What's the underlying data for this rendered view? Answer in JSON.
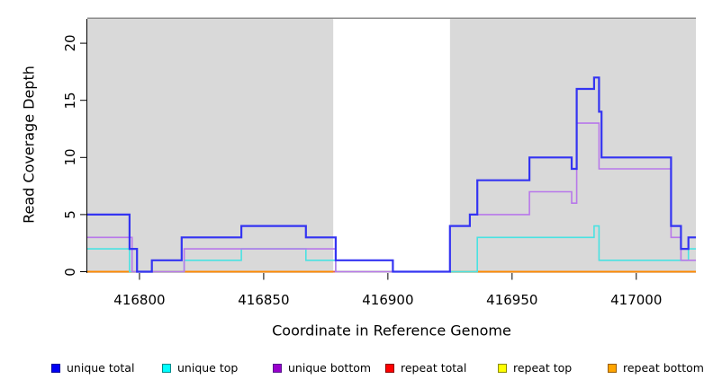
{
  "chart_data": {
    "type": "line",
    "subtype": "step",
    "title": "",
    "xlabel": "Coordinate in Reference Genome",
    "ylabel": "Read Coverage Depth",
    "xlim": [
      416779,
      417024
    ],
    "ylim": [
      0,
      22
    ],
    "grid": false,
    "legend_position": "bottom",
    "plot_background": "#ffffff",
    "shaded_band_color": "#d9d9d9",
    "panel_top_border_color": "#8c8c8c",
    "shaded_bands": [
      {
        "x0": 416779,
        "x1": 416878
      },
      {
        "x0": 416925,
        "x1": 417024
      }
    ],
    "x_ticks": [
      {
        "value": 416800,
        "label": "416800"
      },
      {
        "value": 416850,
        "label": "416850"
      },
      {
        "value": 416900,
        "label": "416900"
      },
      {
        "value": 416950,
        "label": "416950"
      },
      {
        "value": 417000,
        "label": "417000"
      }
    ],
    "y_ticks": [
      {
        "value": 0,
        "label": "0"
      },
      {
        "value": 5,
        "label": "5"
      },
      {
        "value": 10,
        "label": "10"
      },
      {
        "value": 15,
        "label": "15"
      },
      {
        "value": 20,
        "label": "20"
      }
    ],
    "series": [
      {
        "name": "unique total",
        "line_color": "#3434f2",
        "line_width": 2.2,
        "legend_fill": "#0000f5",
        "legend_border": "#00009a",
        "segments": [
          [
            416779,
            416796,
            5
          ],
          [
            416796,
            416799,
            2
          ],
          [
            416799,
            416805,
            0
          ],
          [
            416805,
            416817,
            1
          ],
          [
            416817,
            416841,
            3
          ],
          [
            416841,
            416867,
            4
          ],
          [
            416867,
            416879,
            3
          ],
          [
            416879,
            416902,
            1
          ],
          [
            416902,
            416925,
            0
          ],
          [
            416925,
            416933,
            4
          ],
          [
            416933,
            416936,
            5
          ],
          [
            416936,
            416957,
            8
          ],
          [
            416957,
            416974,
            10
          ],
          [
            416974,
            416976,
            9
          ],
          [
            416976,
            416983,
            16
          ],
          [
            416983,
            416985,
            17
          ],
          [
            416985,
            416986,
            14
          ],
          [
            416986,
            417014,
            10
          ],
          [
            417014,
            417018,
            4
          ],
          [
            417018,
            417021,
            2
          ],
          [
            417021,
            417024,
            3
          ]
        ]
      },
      {
        "name": "unique top",
        "line_color": "#4ae2e2",
        "line_width": 1.6,
        "legend_fill": "#00ffff",
        "legend_border": "#008b8b",
        "segments": [
          [
            416779,
            416796,
            2
          ],
          [
            416796,
            416818,
            0
          ],
          [
            416818,
            416841,
            1
          ],
          [
            416841,
            416867,
            2
          ],
          [
            416867,
            416879,
            1
          ],
          [
            416879,
            416936,
            0
          ],
          [
            416936,
            416983,
            3
          ],
          [
            416983,
            416985,
            4
          ],
          [
            416985,
            417021,
            1
          ],
          [
            417021,
            417024,
            2
          ]
        ]
      },
      {
        "name": "unique bottom",
        "line_color": "#b878ea",
        "line_width": 1.6,
        "legend_fill": "#9900cc",
        "legend_border": "#551a8b",
        "segments": [
          [
            416779,
            416797,
            3
          ],
          [
            416797,
            416818,
            0
          ],
          [
            416818,
            416879,
            2
          ],
          [
            416879,
            416925,
            0
          ],
          [
            416925,
            416933,
            4
          ],
          [
            416933,
            416957,
            5
          ],
          [
            416957,
            416974,
            7
          ],
          [
            416974,
            416976,
            6
          ],
          [
            416976,
            416985,
            13
          ],
          [
            416985,
            417014,
            9
          ],
          [
            417014,
            417018,
            3
          ],
          [
            417018,
            417024,
            1
          ]
        ]
      },
      {
        "name": "repeat total",
        "line_color": "#e8345c",
        "line_width": 1.5,
        "legend_fill": "#ff0000",
        "legend_border": "#8b0000",
        "segments": [
          [
            416779,
            417024,
            0
          ]
        ]
      },
      {
        "name": "repeat top",
        "line_color": "#ffff00",
        "line_width": 1.5,
        "legend_fill": "#ffff00",
        "legend_border": "#8b8b00",
        "segments": [
          [
            416779,
            417024,
            0
          ]
        ]
      },
      {
        "name": "repeat bottom",
        "line_color": "#ff8c00",
        "line_width": 1.8,
        "legend_fill": "#ffa500",
        "legend_border": "#995c00",
        "segments": [
          [
            416779,
            417024,
            0
          ]
        ]
      }
    ],
    "zero_line_overlaps": [
      {
        "x0": 416878,
        "x1": 416903,
        "color": "#dc4f6e"
      },
      {
        "x0": 416925,
        "x1": 416936,
        "color": "#8fd98f"
      }
    ]
  }
}
